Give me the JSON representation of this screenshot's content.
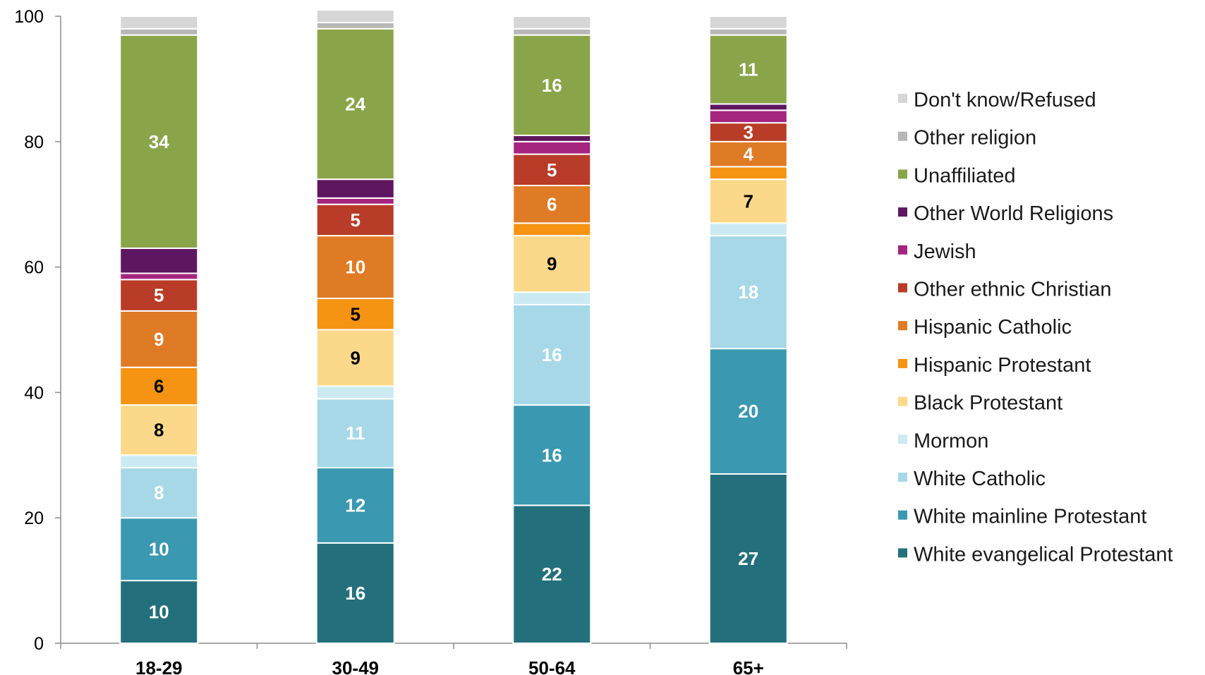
{
  "chart_data": {
    "type": "bar",
    "stacked": true,
    "title": "",
    "xlabel": "",
    "ylabel": "",
    "ylim": [
      0,
      100
    ],
    "yticks": [
      0,
      20,
      40,
      60,
      80,
      100
    ],
    "grid": false,
    "legend_position": "right",
    "categories": [
      "18-29",
      "30-49",
      "50-64",
      "65+"
    ],
    "series": [
      {
        "name": "White evangelical Protestant",
        "color": "#23707c",
        "values": [
          10,
          16,
          22,
          27
        ],
        "labels": [
          "10",
          "16",
          "22",
          "27"
        ],
        "label_color": "#ffffff"
      },
      {
        "name": "White mainline Protestant",
        "color": "#3a98b0",
        "values": [
          10,
          12,
          16,
          20
        ],
        "labels": [
          "10",
          "12",
          "16",
          "20"
        ],
        "label_color": "#ffffff"
      },
      {
        "name": "White Catholic",
        "color": "#a7d8e7",
        "values": [
          8,
          11,
          16,
          18
        ],
        "labels": [
          "8",
          "11",
          "16",
          "18"
        ],
        "label_color": "#ffffff"
      },
      {
        "name": "Mormon",
        "color": "#cbeaf2",
        "values": [
          2,
          2,
          2,
          2
        ],
        "labels": [
          "",
          "",
          "",
          ""
        ],
        "label_color": "#000000"
      },
      {
        "name": "Black Protestant",
        "color": "#fcd98a",
        "values": [
          8,
          9,
          9,
          7
        ],
        "labels": [
          "8",
          "9",
          "9",
          "7"
        ],
        "label_color": "#000000"
      },
      {
        "name": "Hispanic Protestant",
        "color": "#f59312",
        "values": [
          6,
          5,
          2,
          2
        ],
        "labels": [
          "6",
          "5",
          "",
          ""
        ],
        "label_color": "#000000"
      },
      {
        "name": "Hispanic Catholic",
        "color": "#e07b25",
        "values": [
          9,
          10,
          6,
          4
        ],
        "labels": [
          "9",
          "10",
          "6",
          "4"
        ],
        "label_color": "#ffffff"
      },
      {
        "name": "Other ethnic Christian",
        "color": "#b83c27",
        "values": [
          5,
          5,
          5,
          3
        ],
        "labels": [
          "5",
          "5",
          "5",
          "3"
        ],
        "label_color": "#ffffff"
      },
      {
        "name": "Jewish",
        "color": "#a5257f",
        "values": [
          1,
          1,
          2,
          2
        ],
        "labels": [
          "",
          "",
          "",
          ""
        ],
        "label_color": "#ffffff"
      },
      {
        "name": "Other World Religions",
        "color": "#5f1660",
        "values": [
          4,
          3,
          1,
          1
        ],
        "labels": [
          "",
          "",
          "",
          ""
        ],
        "label_color": "#ffffff"
      },
      {
        "name": "Unaffiliated",
        "color": "#8aa44a",
        "values": [
          34,
          24,
          16,
          11
        ],
        "labels": [
          "34",
          "24",
          "16",
          "11"
        ],
        "label_color": "#ffffff"
      },
      {
        "name": "Other religion",
        "color": "#b7b7b7",
        "values": [
          1,
          1,
          1,
          1
        ],
        "labels": [
          "",
          "",
          "",
          ""
        ],
        "label_color": "#000000"
      },
      {
        "name": "Don't know/Refused",
        "color": "#d6d6d6",
        "values": [
          2,
          2,
          2,
          2
        ],
        "labels": [
          "",
          "",
          "",
          ""
        ],
        "label_color": "#000000"
      }
    ]
  }
}
